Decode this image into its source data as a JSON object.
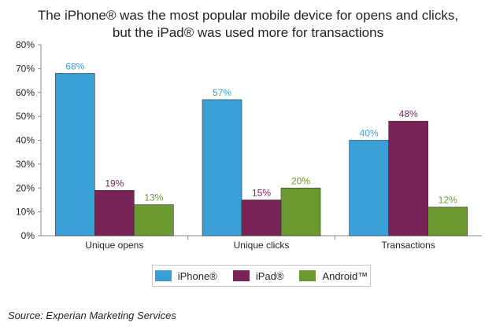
{
  "title_line1": "The iPhone® was the most popular mobile device for opens and clicks,",
  "title_line2": "but the iPad® was used more for transactions",
  "source": "Source: Experian Marketing Services",
  "chart_data": {
    "type": "bar",
    "categories": [
      "Unique opens",
      "Unique clicks",
      "Transactions"
    ],
    "series": [
      {
        "name": "iPhone®",
        "color": "#3a9fd5",
        "values": [
          68,
          57,
          40
        ]
      },
      {
        "name": "iPad®",
        "color": "#7a2356",
        "values": [
          19,
          15,
          48
        ]
      },
      {
        "name": "Android™",
        "color": "#6b9a33",
        "values": [
          13,
          20,
          12
        ]
      }
    ],
    "value_format": "percent",
    "data_labels": [
      "68%",
      "57%",
      "40%",
      "19%",
      "15%",
      "48%",
      "13%",
      "20%",
      "12%"
    ],
    "ylim": [
      0,
      80
    ],
    "yticks": [
      "0%",
      "10%",
      "20%",
      "30%",
      "40%",
      "50%",
      "60%",
      "70%",
      "80%"
    ],
    "grid": false,
    "legend_position": "bottom"
  }
}
